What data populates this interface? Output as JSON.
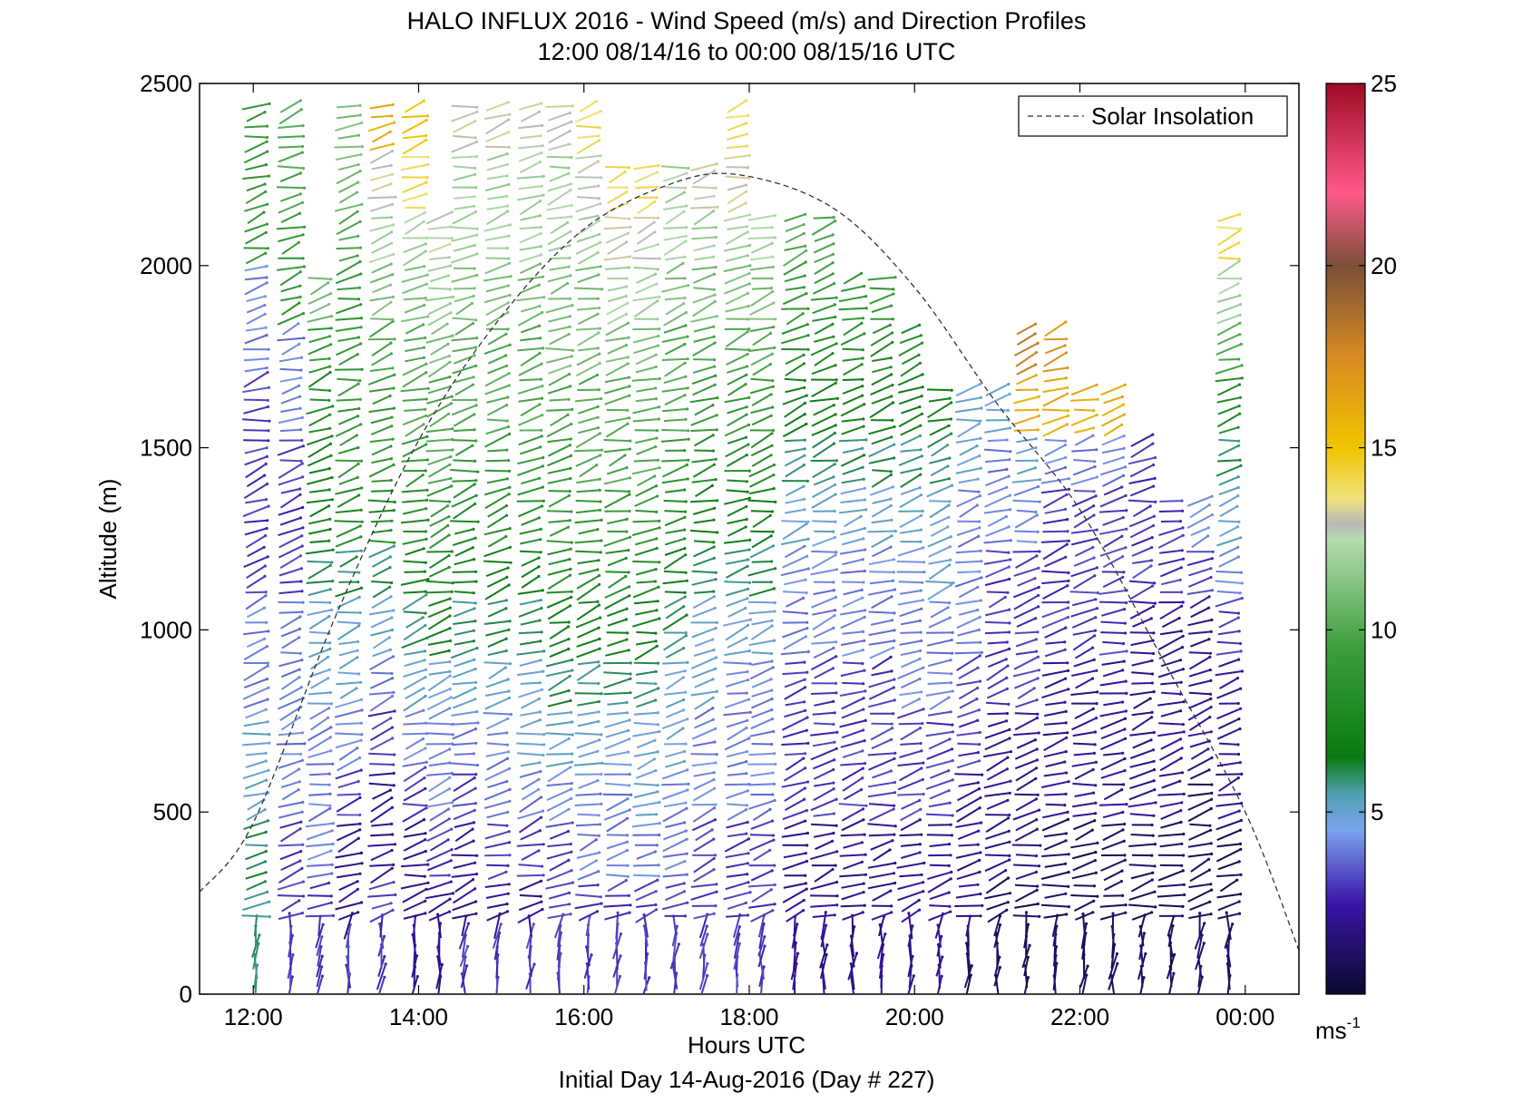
{
  "chart_data": {
    "type": "wind-barb-profile",
    "title": "HALO INFLUX 2016 - Wind Speed (m/s) and Direction Profiles",
    "subtitle": "12:00 08/14/16 to 00:00 08/15/16  UTC",
    "xlabel": "Hours UTC",
    "ylabel": "Altitude (m)",
    "footer": "Initial Day 14-Aug-2016 (Day # 227)",
    "xlim": [
      11.35,
      24.65
    ],
    "ylim": [
      0,
      2500
    ],
    "x_ticks": [
      {
        "value": 12,
        "label": "12:00"
      },
      {
        "value": 14,
        "label": "14:00"
      },
      {
        "value": 16,
        "label": "16:00"
      },
      {
        "value": 18,
        "label": "18:00"
      },
      {
        "value": 20,
        "label": "20:00"
      },
      {
        "value": 22,
        "label": "22:00"
      },
      {
        "value": 24,
        "label": "00:00"
      }
    ],
    "y_ticks": [
      {
        "value": 0,
        "label": "0"
      },
      {
        "value": 500,
        "label": "500"
      },
      {
        "value": 1000,
        "label": "1000"
      },
      {
        "value": 1500,
        "label": "1500"
      },
      {
        "value": 2000,
        "label": "2000"
      },
      {
        "value": 2500,
        "label": "2500"
      }
    ],
    "legend": {
      "label": "Solar Insolation",
      "placement": "top-right",
      "style": "dashed"
    },
    "colorbar": {
      "min": 0,
      "max": 25,
      "ticks": [
        {
          "value": 5,
          "label": "5"
        },
        {
          "value": 10,
          "label": "10"
        },
        {
          "value": 15,
          "label": "15"
        },
        {
          "value": 20,
          "label": "20"
        },
        {
          "value": 25,
          "label": "25"
        }
      ],
      "unit_base": "ms",
      "unit_exp": "-1",
      "stops": [
        {
          "value": 0,
          "color": "#0a0a2e"
        },
        {
          "value": 2.5,
          "color": "#3a14a8"
        },
        {
          "value": 4.5,
          "color": "#7aa2ee"
        },
        {
          "value": 5.5,
          "color": "#4fa0b0"
        },
        {
          "value": 6.5,
          "color": "#0a7a12"
        },
        {
          "value": 9.5,
          "color": "#3c9e3c"
        },
        {
          "value": 12.5,
          "color": "#b6dcb0"
        },
        {
          "value": 12.9,
          "color": "#b8b8b8"
        },
        {
          "value": 13.6,
          "color": "#efe27a"
        },
        {
          "value": 15,
          "color": "#f1c400"
        },
        {
          "value": 17.5,
          "color": "#d88a22"
        },
        {
          "value": 20,
          "color": "#7a5038"
        },
        {
          "value": 22,
          "color": "#ff5a8a"
        },
        {
          "value": 25,
          "color": "#9e0b25"
        }
      ]
    },
    "solar_insolation": {
      "peak_time": 17.85,
      "peak_altitude": 2250,
      "x": [
        11.35,
        12.0,
        13.0,
        14.0,
        15.0,
        16.0,
        17.0,
        17.85,
        19.0,
        20.0,
        21.0,
        22.0,
        23.0,
        24.0,
        24.65
      ],
      "y": [
        280,
        470,
        1040,
        1520,
        1860,
        2100,
        2220,
        2250,
        2160,
        1940,
        1620,
        1330,
        920,
        500,
        120
      ]
    },
    "profiles": [
      {
        "time": 12.03,
        "speed": [
          6,
          6,
          6,
          5,
          5,
          4,
          4,
          3,
          3,
          3,
          3,
          4,
          4,
          9,
          9,
          9,
          9,
          9
        ]
      },
      {
        "time": 12.45,
        "speed": [
          3,
          3,
          3,
          4,
          4,
          4,
          4,
          3,
          3,
          3,
          4,
          4,
          9,
          9,
          10,
          10,
          9
        ]
      },
      {
        "time": 12.8,
        "speed": [
          3,
          3,
          4,
          4,
          4,
          5,
          5,
          6,
          7,
          7,
          8,
          9,
          11
        ]
      },
      {
        "time": 13.15,
        "speed": [
          3,
          2,
          2,
          3,
          4,
          5,
          5,
          6,
          8,
          9,
          9,
          9,
          9,
          10,
          11,
          11
        ]
      },
      {
        "time": 13.55,
        "speed": [
          3,
          3,
          2,
          2,
          3,
          4,
          5,
          6,
          8,
          9,
          9,
          10,
          11,
          12,
          13,
          16,
          16
        ]
      },
      {
        "time": 13.95,
        "speed": [
          2,
          2,
          2,
          3,
          4,
          5,
          6,
          7,
          8,
          9,
          10,
          10,
          11,
          12,
          14,
          15
        ]
      },
      {
        "time": 14.25,
        "speed": [
          2,
          2,
          3,
          4,
          4,
          5,
          7,
          8,
          9,
          10,
          10,
          11,
          12,
          13
        ]
      },
      {
        "time": 14.55,
        "speed": [
          3,
          2,
          2,
          3,
          4,
          5,
          6,
          7,
          8,
          9,
          10,
          10,
          11,
          12,
          12,
          13,
          13,
          14,
          14,
          15,
          16
        ]
      },
      {
        "time": 14.95,
        "speed": [
          3,
          2,
          3,
          4,
          4,
          5,
          6,
          7,
          8,
          9,
          10,
          10,
          11,
          12,
          12,
          13
        ]
      },
      {
        "time": 15.35,
        "speed": [
          3,
          2,
          3,
          4,
          5,
          5,
          6,
          7,
          8,
          9,
          10,
          10,
          11,
          12,
          12,
          13,
          14,
          15,
          16
        ]
      },
      {
        "time": 15.7,
        "speed": [
          3,
          3,
          3,
          4,
          5,
          6,
          7,
          8,
          9,
          9,
          10,
          11,
          11,
          12,
          12,
          13,
          14
        ]
      },
      {
        "time": 16.05,
        "speed": [
          3,
          3,
          4,
          4,
          5,
          6,
          7,
          8,
          9,
          10,
          10,
          11,
          11,
          12,
          13,
          14,
          15,
          17,
          18
        ]
      },
      {
        "time": 16.4,
        "speed": [
          3,
          3,
          4,
          4,
          5,
          6,
          7,
          8,
          9,
          10,
          10,
          11,
          12,
          13,
          14
        ]
      },
      {
        "time": 16.75,
        "speed": [
          3,
          3,
          4,
          5,
          5,
          6,
          7,
          8,
          9,
          10,
          10,
          11,
          12,
          13,
          14
        ]
      },
      {
        "time": 17.1,
        "speed": [
          3,
          3,
          4,
          4,
          5,
          5,
          6,
          7,
          8,
          9,
          10,
          10,
          11,
          12,
          12
        ]
      },
      {
        "time": 17.45,
        "speed": [
          3,
          3,
          3,
          4,
          4,
          5,
          5,
          6,
          7,
          8,
          9,
          10,
          11,
          12,
          13
        ]
      },
      {
        "time": 17.85,
        "speed": [
          3,
          3,
          3,
          4,
          4,
          4,
          5,
          6,
          7,
          8,
          9,
          10,
          11,
          12,
          13,
          14,
          15
        ]
      },
      {
        "time": 18.15,
        "speed": [
          3,
          3,
          3,
          4,
          4,
          4,
          5,
          6,
          7,
          8,
          9,
          10,
          11,
          12
        ]
      },
      {
        "time": 18.55,
        "speed": [
          2,
          2,
          2,
          3,
          3,
          3,
          4,
          4,
          5,
          6,
          7,
          8,
          9,
          10
        ]
      },
      {
        "time": 18.9,
        "speed": [
          2,
          2,
          2,
          3,
          3,
          3,
          4,
          4,
          5,
          6,
          7,
          8,
          9,
          10
        ]
      },
      {
        "time": 19.25,
        "speed": [
          2,
          2,
          2,
          3,
          3,
          3,
          4,
          4,
          5,
          6,
          7,
          8,
          9
        ]
      },
      {
        "time": 19.6,
        "speed": [
          2,
          2,
          2,
          3,
          3,
          3,
          4,
          4,
          5,
          6,
          7,
          8,
          9
        ]
      },
      {
        "time": 19.95,
        "speed": [
          2,
          2,
          2,
          3,
          3,
          4,
          4,
          4,
          5,
          6,
          7,
          8
        ]
      },
      {
        "time": 20.3,
        "speed": [
          2,
          2,
          2,
          3,
          3,
          4,
          4,
          5,
          5,
          6,
          7
        ]
      },
      {
        "time": 20.65,
        "speed": [
          1,
          2,
          2,
          2,
          3,
          3,
          4,
          4,
          4,
          5,
          5
        ]
      },
      {
        "time": 21.0,
        "speed": [
          1,
          1,
          2,
          2,
          2,
          3,
          3,
          3,
          4,
          4,
          5
        ]
      },
      {
        "time": 21.35,
        "speed": [
          1,
          1,
          2,
          2,
          2,
          3,
          3,
          3,
          4,
          5,
          16,
          18
        ]
      },
      {
        "time": 21.7,
        "speed": [
          1,
          1,
          1,
          2,
          2,
          2,
          3,
          3,
          3,
          4,
          16,
          17
        ]
      },
      {
        "time": 22.05,
        "speed": [
          1,
          1,
          1,
          2,
          2,
          2,
          3,
          3,
          3,
          4,
          16
        ]
      },
      {
        "time": 22.4,
        "speed": [
          1,
          1,
          1,
          2,
          2,
          2,
          3,
          3,
          3,
          4,
          16
        ]
      },
      {
        "time": 22.75,
        "speed": [
          1,
          1,
          1,
          2,
          2,
          2,
          2,
          3,
          3,
          3
        ]
      },
      {
        "time": 23.1,
        "speed": [
          1,
          1,
          1,
          2,
          2,
          2,
          2,
          3,
          3
        ]
      },
      {
        "time": 23.45,
        "speed": [
          1,
          1,
          1,
          1,
          2,
          2,
          2,
          3,
          4
        ]
      },
      {
        "time": 23.8,
        "speed": [
          1,
          1,
          1,
          2,
          2,
          2,
          3,
          4,
          5,
          6,
          8,
          10,
          12,
          14
        ]
      }
    ]
  }
}
